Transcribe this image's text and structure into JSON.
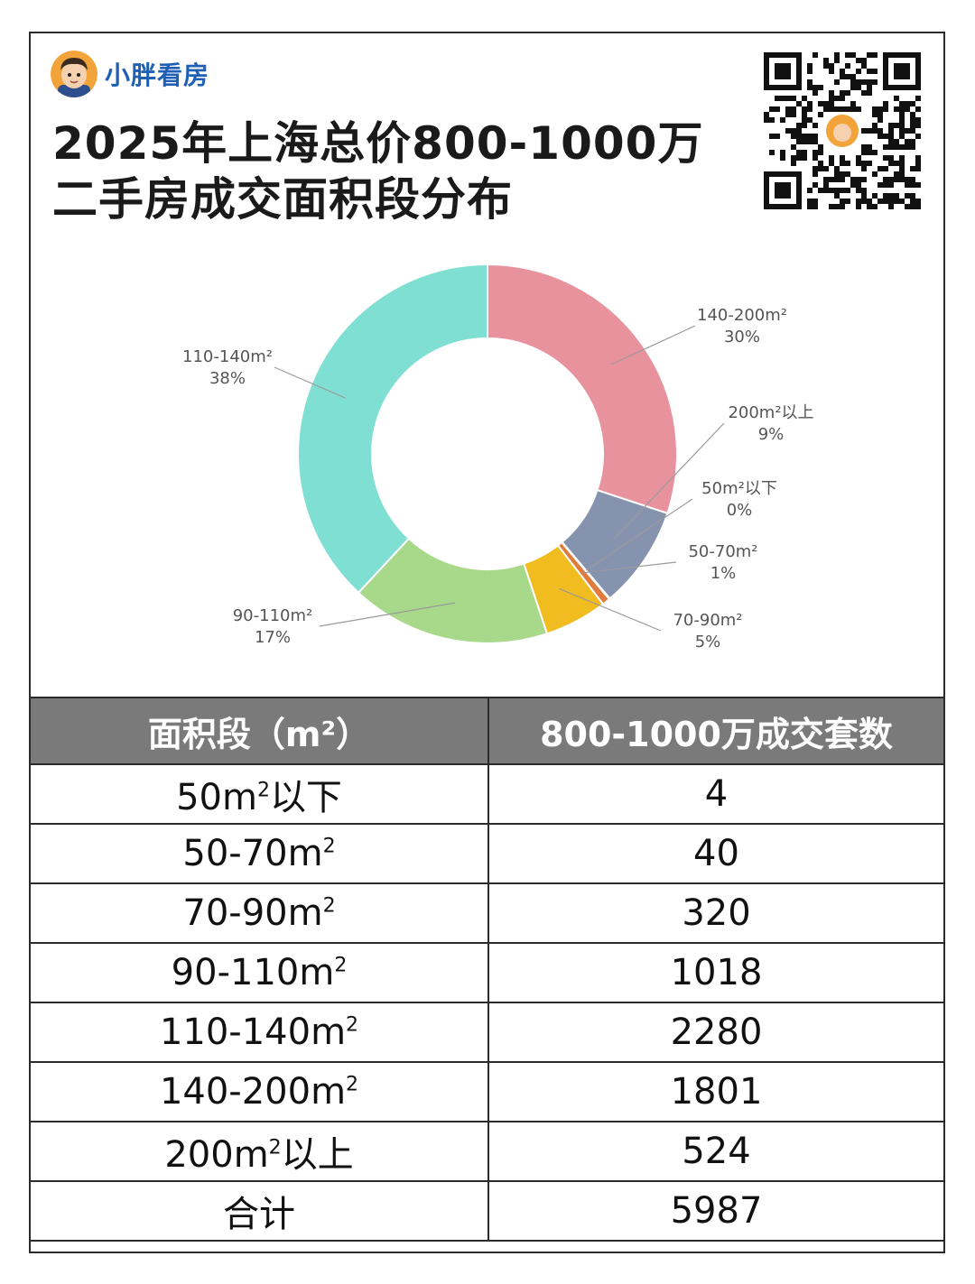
{
  "brand": {
    "name": "小胖看房"
  },
  "title": {
    "line1": "2025年上海总价800-1000万",
    "line2": "二手房成交面积段分布"
  },
  "chart_data": {
    "type": "pie",
    "donut": true,
    "slices": [
      {
        "label": "140-200m²",
        "pct_label": "30%",
        "value": 1801,
        "color": "#E8929E"
      },
      {
        "label": "200m²以上",
        "pct_label": "9%",
        "value": 524,
        "color": "#8593AE"
      },
      {
        "label": "50m²以下",
        "pct_label": "0%",
        "value": 4,
        "color": "#7E8FA6"
      },
      {
        "label": "50-70m²",
        "pct_label": "1%",
        "value": 40,
        "color": "#E07B3C"
      },
      {
        "label": "70-90m²",
        "pct_label": "5%",
        "value": 320,
        "color": "#F0BC1F"
      },
      {
        "label": "90-110m²",
        "pct_label": "17%",
        "value": 1018,
        "color": "#A8D98B"
      },
      {
        "label": "110-140m²",
        "pct_label": "38%",
        "value": 2280,
        "color": "#7EDFD2"
      }
    ]
  },
  "table": {
    "headers": [
      "面积段（m²）",
      "800-1000万成交套数"
    ],
    "rows": [
      {
        "range_main": "50m",
        "range_sup": "2",
        "range_tail": "以下",
        "count": "4"
      },
      {
        "range_main": "50-70m",
        "range_sup": "2",
        "range_tail": "",
        "count": "40"
      },
      {
        "range_main": "70-90m",
        "range_sup": "2",
        "range_tail": "",
        "count": "320"
      },
      {
        "range_main": "90-110m",
        "range_sup": "2",
        "range_tail": "",
        "count": "1018"
      },
      {
        "range_main": "110-140m",
        "range_sup": "2",
        "range_tail": "",
        "count": "2280"
      },
      {
        "range_main": "140-200m",
        "range_sup": "2",
        "range_tail": "",
        "count": "1801"
      },
      {
        "range_main": "200m",
        "range_sup": "2",
        "range_tail": "以上",
        "count": "524"
      },
      {
        "range_main": "合计",
        "range_sup": "",
        "range_tail": "",
        "count": "5987"
      }
    ]
  }
}
